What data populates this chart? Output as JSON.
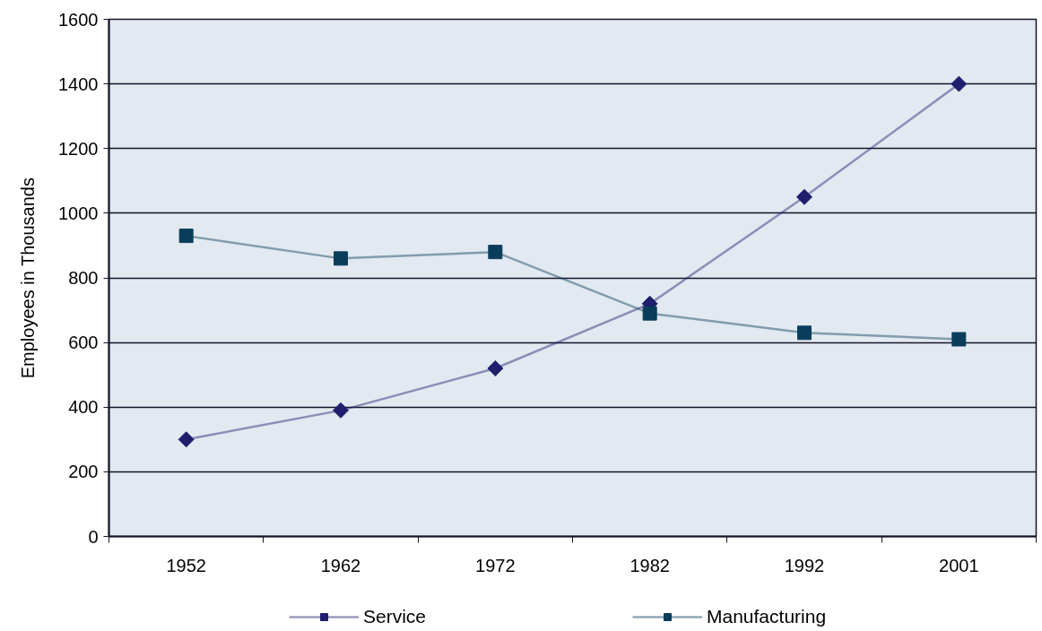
{
  "chart_data": {
    "type": "line",
    "categories": [
      "1952",
      "1962",
      "1972",
      "1982",
      "1992",
      "2001"
    ],
    "ylabel": "Employees in Thousands",
    "ylim": [
      0,
      1600
    ],
    "yticks": [
      0,
      200,
      400,
      600,
      800,
      1000,
      1200,
      1400,
      1600
    ],
    "grid": "y",
    "legend": "bottom",
    "line_style": "solid",
    "series": [
      {
        "name": "Service",
        "color": "#1f1f6e",
        "marker": "diamond",
        "values": [
          300,
          390,
          520,
          720,
          1050,
          1400
        ]
      },
      {
        "name": "Manufacturing",
        "color": "#0a3d5c",
        "marker": "square",
        "values": [
          930,
          860,
          880,
          690,
          630,
          610
        ]
      }
    ]
  }
}
